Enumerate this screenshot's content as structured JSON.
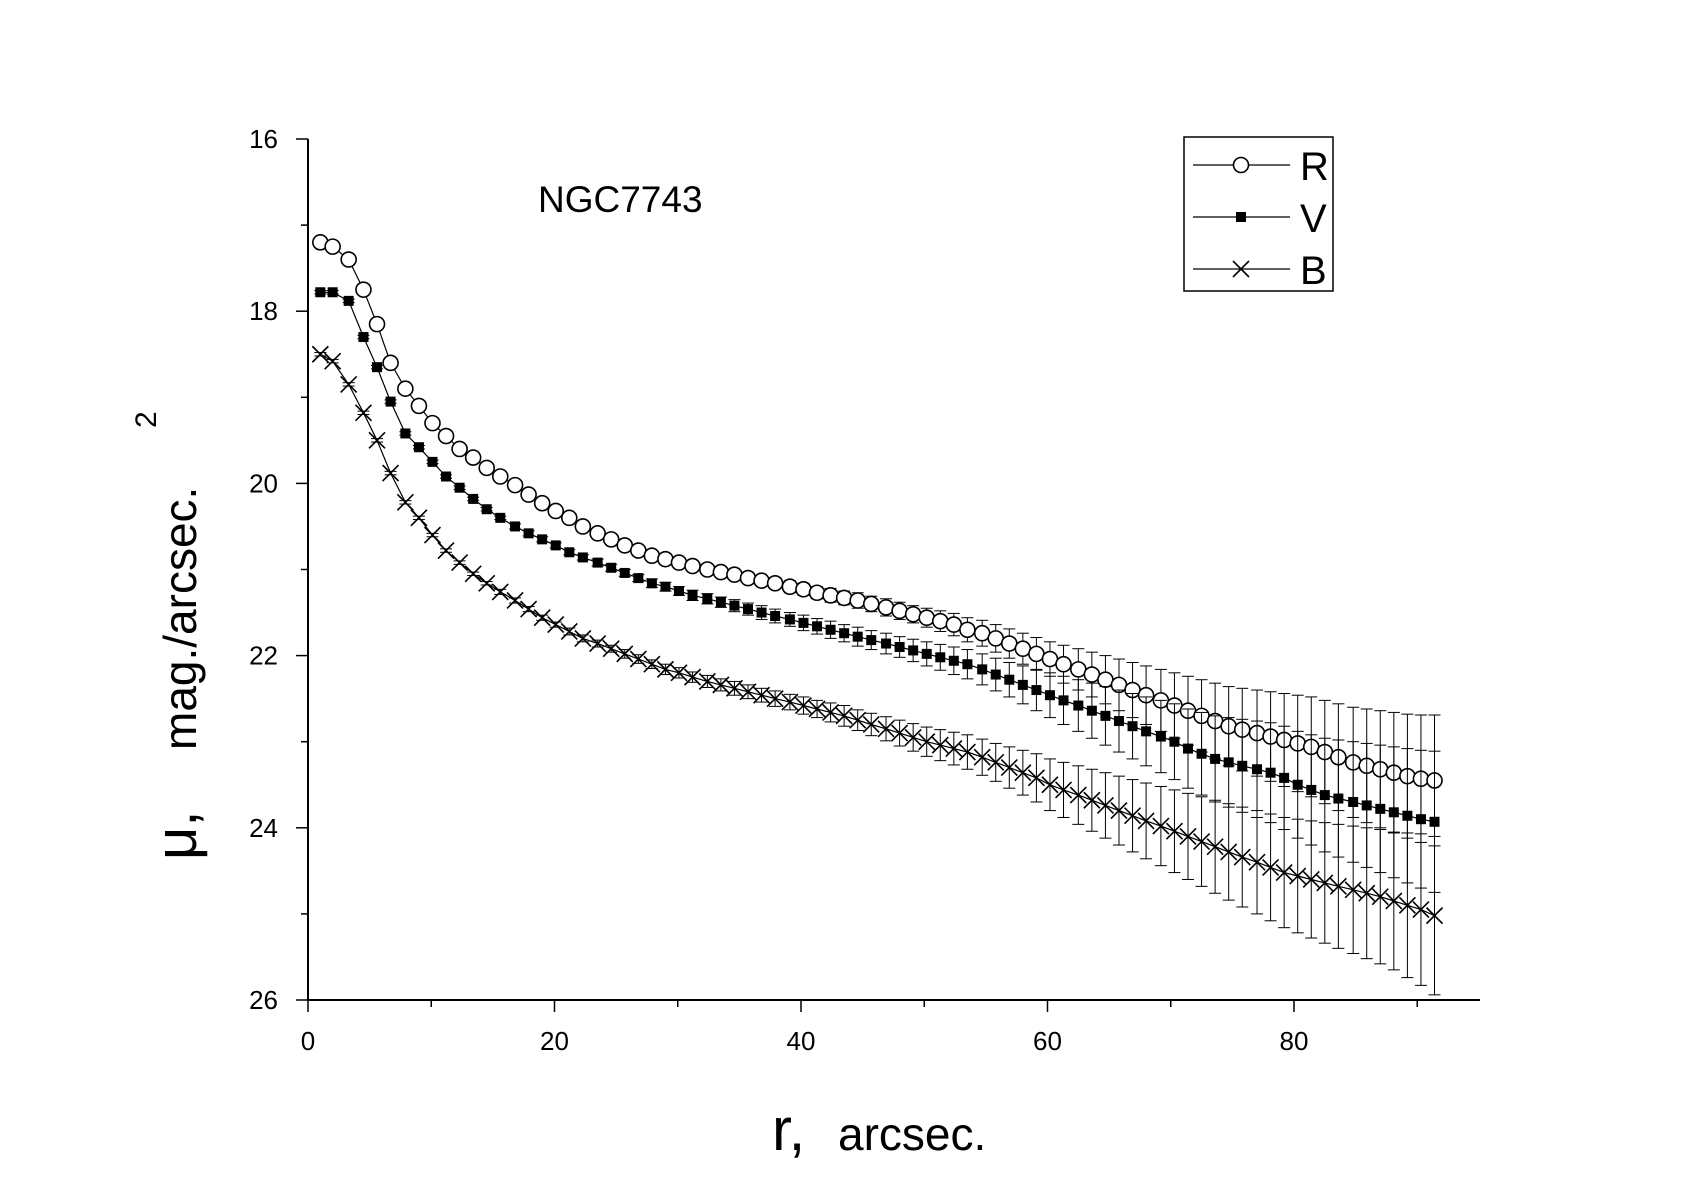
{
  "chart_data": {
    "type": "line",
    "title": "",
    "annotation": "NGC7743",
    "xlabel_symbol": "r,",
    "xlabel_text": "arcsec.",
    "ylabel_symbol": "μ,",
    "ylabel_text": "mag./arcsec.",
    "ylabel_exponent": "2",
    "xlim": [
      0,
      95
    ],
    "ylim": [
      16,
      26
    ],
    "y_inverted": true,
    "x_ticks": [
      0,
      20,
      40,
      60,
      80
    ],
    "y_ticks": [
      16,
      18,
      20,
      22,
      24,
      26
    ],
    "grid": false,
    "legend_position": "top-right",
    "series": [
      {
        "name": "R",
        "marker": "open-circle",
        "x": [
          1,
          2,
          3.3,
          4.5,
          5.6,
          6.7,
          7.9,
          9,
          10.1,
          11.2,
          12.3,
          13.4,
          14.5,
          15.6,
          16.8,
          17.9,
          19,
          20.1,
          21.2,
          22.3,
          23.5,
          24.6,
          25.7,
          26.8,
          27.9,
          29,
          30.1,
          31.2,
          32.4,
          33.5,
          34.6,
          35.7,
          36.8,
          37.9,
          39.1,
          40.2,
          41.3,
          42.4,
          43.5,
          44.6,
          45.7,
          46.9,
          48,
          49.1,
          50.2,
          51.3,
          52.4,
          53.5,
          54.7,
          55.8,
          56.9,
          58,
          59.1,
          60.2,
          61.3,
          62.5,
          63.6,
          64.7,
          65.8,
          66.9,
          68,
          69.2,
          70.3,
          71.4,
          72.5,
          73.6,
          74.7,
          75.8,
          77,
          78.1,
          79.2,
          80.3,
          81.4,
          82.5,
          83.6,
          84.8,
          85.9,
          87,
          88.1,
          89.2,
          90.3,
          91.4
        ],
        "y": [
          17.2,
          17.25,
          17.4,
          17.75,
          18.15,
          18.6,
          18.9,
          19.1,
          19.3,
          19.45,
          19.6,
          19.7,
          19.82,
          19.92,
          20.02,
          20.13,
          20.23,
          20.32,
          20.4,
          20.5,
          20.58,
          20.65,
          20.72,
          20.78,
          20.84,
          20.88,
          20.92,
          20.96,
          21,
          21.03,
          21.06,
          21.1,
          21.13,
          21.16,
          21.2,
          21.23,
          21.27,
          21.3,
          21.33,
          21.36,
          21.4,
          21.44,
          21.48,
          21.52,
          21.56,
          21.6,
          21.64,
          21.7,
          21.74,
          21.8,
          21.86,
          21.92,
          21.98,
          22.04,
          22.1,
          22.16,
          22.22,
          22.28,
          22.34,
          22.4,
          22.46,
          22.52,
          22.58,
          22.64,
          22.7,
          22.76,
          22.82,
          22.86,
          22.9,
          22.94,
          22.98,
          23.02,
          23.06,
          23.12,
          23.18,
          23.24,
          23.28,
          23.32,
          23.36,
          23.4,
          23.43,
          23.45
        ],
        "err": [
          0.02,
          0.02,
          0.02,
          0.02,
          0.02,
          0.02,
          0.02,
          0.02,
          0.02,
          0.02,
          0.02,
          0.02,
          0.02,
          0.02,
          0.02,
          0.03,
          0.03,
          0.03,
          0.03,
          0.03,
          0.03,
          0.03,
          0.03,
          0.04,
          0.04,
          0.04,
          0.04,
          0.05,
          0.05,
          0.05,
          0.05,
          0.06,
          0.06,
          0.06,
          0.07,
          0.07,
          0.07,
          0.08,
          0.08,
          0.09,
          0.09,
          0.1,
          0.1,
          0.1,
          0.11,
          0.12,
          0.13,
          0.14,
          0.15,
          0.16,
          0.17,
          0.18,
          0.19,
          0.2,
          0.22,
          0.24,
          0.26,
          0.28,
          0.3,
          0.32,
          0.34,
          0.36,
          0.38,
          0.4,
          0.42,
          0.44,
          0.46,
          0.48,
          0.5,
          0.52,
          0.54,
          0.56,
          0.58,
          0.6,
          0.62,
          0.64,
          0.66,
          0.68,
          0.7,
          0.72,
          0.74,
          0.76
        ]
      },
      {
        "name": "V",
        "marker": "filled-square",
        "x": [
          1,
          2,
          3.3,
          4.5,
          5.6,
          6.7,
          7.9,
          9,
          10.1,
          11.2,
          12.3,
          13.4,
          14.5,
          15.6,
          16.8,
          17.9,
          19,
          20.1,
          21.2,
          22.3,
          23.5,
          24.6,
          25.7,
          26.8,
          27.9,
          29,
          30.1,
          31.2,
          32.4,
          33.5,
          34.6,
          35.7,
          36.8,
          37.9,
          39.1,
          40.2,
          41.3,
          42.4,
          43.5,
          44.6,
          45.7,
          46.9,
          48,
          49.1,
          50.2,
          51.3,
          52.4,
          53.5,
          54.7,
          55.8,
          56.9,
          58,
          59.1,
          60.2,
          61.3,
          62.5,
          63.6,
          64.7,
          65.8,
          66.9,
          68,
          69.2,
          70.3,
          71.4,
          72.5,
          73.6,
          74.7,
          75.8,
          77,
          78.1,
          79.2,
          80.3,
          81.4,
          82.5,
          83.6,
          84.8,
          85.9,
          87,
          88.1,
          89.2,
          90.3,
          91.4
        ],
        "y": [
          17.78,
          17.78,
          17.88,
          18.3,
          18.65,
          19.05,
          19.42,
          19.58,
          19.75,
          19.92,
          20.05,
          20.18,
          20.3,
          20.4,
          20.5,
          20.58,
          20.65,
          20.72,
          20.8,
          20.86,
          20.92,
          20.98,
          21.04,
          21.1,
          21.16,
          21.2,
          21.25,
          21.3,
          21.34,
          21.38,
          21.42,
          21.46,
          21.5,
          21.54,
          21.58,
          21.62,
          21.66,
          21.7,
          21.74,
          21.78,
          21.82,
          21.86,
          21.9,
          21.94,
          21.98,
          22.02,
          22.06,
          22.1,
          22.16,
          22.22,
          22.28,
          22.34,
          22.4,
          22.46,
          22.52,
          22.58,
          22.64,
          22.7,
          22.76,
          22.82,
          22.88,
          22.94,
          23,
          23.08,
          23.14,
          23.2,
          23.24,
          23.28,
          23.32,
          23.36,
          23.42,
          23.5,
          23.56,
          23.62,
          23.66,
          23.7,
          23.74,
          23.78,
          23.82,
          23.86,
          23.9,
          23.93
        ],
        "err": [
          0.02,
          0.02,
          0.02,
          0.02,
          0.02,
          0.02,
          0.02,
          0.02,
          0.02,
          0.02,
          0.02,
          0.02,
          0.02,
          0.02,
          0.03,
          0.03,
          0.03,
          0.03,
          0.03,
          0.03,
          0.04,
          0.04,
          0.04,
          0.04,
          0.05,
          0.05,
          0.05,
          0.06,
          0.06,
          0.06,
          0.07,
          0.07,
          0.08,
          0.08,
          0.08,
          0.09,
          0.09,
          0.1,
          0.1,
          0.11,
          0.11,
          0.12,
          0.12,
          0.13,
          0.14,
          0.15,
          0.16,
          0.17,
          0.18,
          0.19,
          0.2,
          0.22,
          0.24,
          0.26,
          0.28,
          0.3,
          0.32,
          0.34,
          0.36,
          0.38,
          0.4,
          0.42,
          0.44,
          0.46,
          0.48,
          0.5,
          0.52,
          0.54,
          0.56,
          0.58,
          0.6,
          0.62,
          0.64,
          0.66,
          0.68,
          0.7,
          0.72,
          0.74,
          0.76,
          0.78,
          0.8,
          0.82
        ]
      },
      {
        "name": "B",
        "marker": "cross",
        "x": [
          1,
          2,
          3.3,
          4.5,
          5.6,
          6.7,
          7.9,
          9,
          10.1,
          11.2,
          12.3,
          13.4,
          14.5,
          15.6,
          16.8,
          17.9,
          19,
          20.1,
          21.2,
          22.3,
          23.5,
          24.6,
          25.7,
          26.8,
          27.9,
          29,
          30.1,
          31.2,
          32.4,
          33.5,
          34.6,
          35.7,
          36.8,
          37.9,
          39.1,
          40.2,
          41.3,
          42.4,
          43.5,
          44.6,
          45.7,
          46.9,
          48,
          49.1,
          50.2,
          51.3,
          52.4,
          53.5,
          54.7,
          55.8,
          56.9,
          58,
          59.1,
          60.2,
          61.3,
          62.5,
          63.6,
          64.7,
          65.8,
          66.9,
          68,
          69.2,
          70.3,
          71.4,
          72.5,
          73.6,
          74.7,
          75.8,
          77,
          78.1,
          79.2,
          80.3,
          81.4,
          82.5,
          83.6,
          84.8,
          85.9,
          87,
          88.1,
          89.2,
          90.3,
          91.4
        ],
        "y": [
          18.5,
          18.58,
          18.85,
          19.18,
          19.5,
          19.88,
          20.22,
          20.4,
          20.6,
          20.78,
          20.92,
          21.05,
          21.16,
          21.26,
          21.36,
          21.46,
          21.56,
          21.64,
          21.72,
          21.8,
          21.86,
          21.92,
          21.98,
          22.04,
          22.1,
          22.16,
          22.2,
          22.25,
          22.3,
          22.34,
          22.38,
          22.42,
          22.46,
          22.5,
          22.54,
          22.58,
          22.62,
          22.66,
          22.7,
          22.75,
          22.8,
          22.85,
          22.9,
          22.95,
          23,
          23.04,
          23.08,
          23.12,
          23.18,
          23.24,
          23.3,
          23.36,
          23.42,
          23.5,
          23.56,
          23.62,
          23.68,
          23.74,
          23.8,
          23.86,
          23.92,
          23.98,
          24.04,
          24.1,
          24.16,
          24.22,
          24.28,
          24.34,
          24.4,
          24.46,
          24.52,
          24.56,
          24.6,
          24.64,
          24.68,
          24.72,
          24.76,
          24.8,
          24.85,
          24.9,
          24.95,
          25.02
        ],
        "err": [
          0.02,
          0.02,
          0.02,
          0.02,
          0.02,
          0.02,
          0.02,
          0.02,
          0.02,
          0.02,
          0.02,
          0.02,
          0.02,
          0.03,
          0.03,
          0.03,
          0.03,
          0.03,
          0.04,
          0.04,
          0.04,
          0.04,
          0.05,
          0.05,
          0.05,
          0.06,
          0.06,
          0.06,
          0.07,
          0.07,
          0.08,
          0.08,
          0.08,
          0.09,
          0.09,
          0.1,
          0.1,
          0.11,
          0.12,
          0.12,
          0.13,
          0.14,
          0.15,
          0.16,
          0.17,
          0.18,
          0.19,
          0.2,
          0.21,
          0.22,
          0.24,
          0.26,
          0.28,
          0.3,
          0.32,
          0.34,
          0.36,
          0.38,
          0.4,
          0.42,
          0.44,
          0.46,
          0.48,
          0.5,
          0.52,
          0.54,
          0.56,
          0.58,
          0.6,
          0.62,
          0.64,
          0.66,
          0.68,
          0.7,
          0.72,
          0.74,
          0.76,
          0.78,
          0.8,
          0.84,
          0.88,
          0.92
        ]
      }
    ]
  }
}
